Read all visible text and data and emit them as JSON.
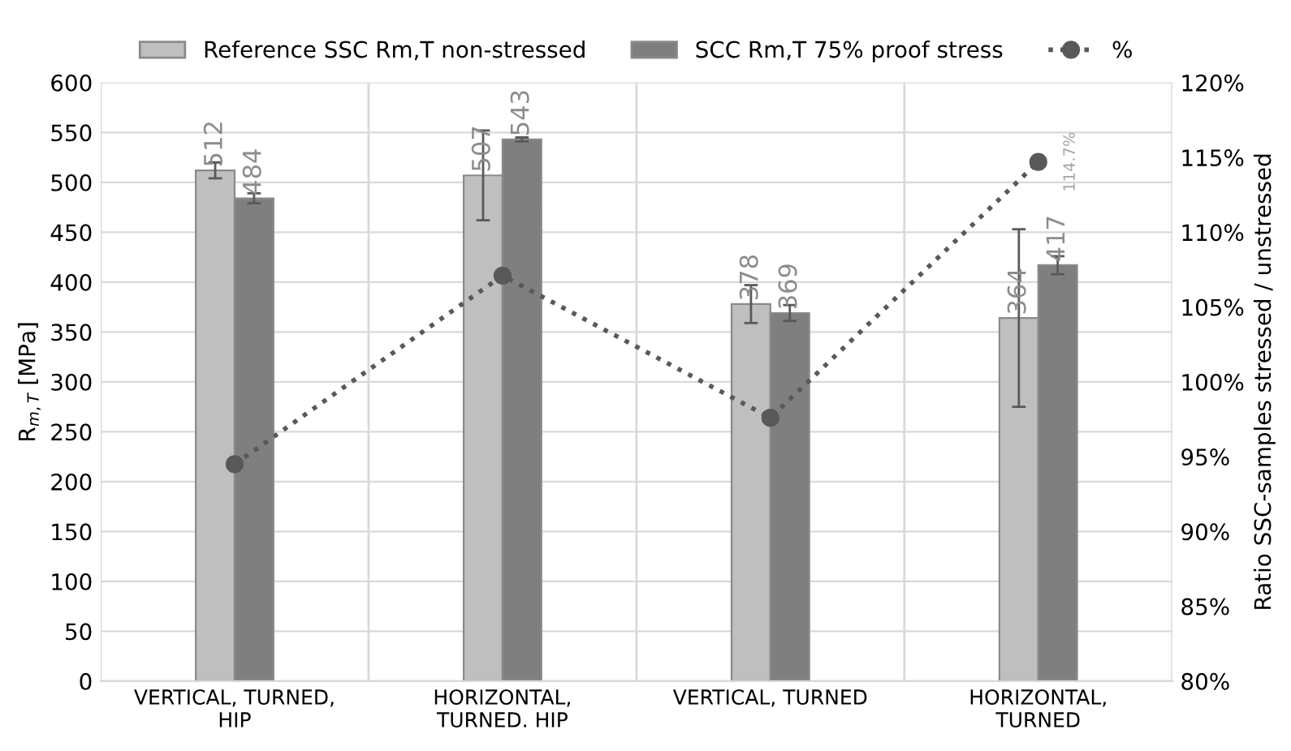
{
  "chart_data": {
    "type": "bar",
    "categories": [
      "VERTICAL, TURNED,\nHIP",
      "HORIZONTAL,\nTURNED. HIP",
      "VERTICAL, TURNED",
      "HORIZONTAL,\nTURNED"
    ],
    "series": [
      {
        "name": "Reference SSC Rm,T non-stressed",
        "color": "#bfbfbf",
        "values": [
          512,
          507,
          378,
          364
        ],
        "errors": [
          8,
          45,
          19,
          89
        ],
        "value_labels": [
          "512",
          "507",
          "378",
          "364"
        ]
      },
      {
        "name": "SCC Rm,T 75% proof stress",
        "color": "#7f7f7f",
        "values": [
          484,
          543,
          369,
          417
        ],
        "errors": [
          5,
          2,
          8,
          9
        ],
        "value_labels": [
          "484",
          "543",
          "369",
          "417"
        ]
      },
      {
        "name": "%",
        "type": "line",
        "axis": "y2",
        "color": "#595959",
        "marker": "circle",
        "line_style": "dotted",
        "values": [
          94.5,
          107.1,
          97.6,
          114.7
        ],
        "value_labels": [
          null,
          null,
          null,
          "114.7%"
        ]
      }
    ],
    "ylabel": "R$_{m,T}$ [MPa]",
    "y2label": "Ratio SSC-samples stressed / unstressed",
    "ylim": [
      0,
      600
    ],
    "yticks": [
      0,
      50,
      100,
      150,
      200,
      250,
      300,
      350,
      400,
      450,
      500,
      550,
      600
    ],
    "y2lim": [
      80,
      120
    ],
    "y2ticks": [
      {
        "value": 80,
        "label": "80%"
      },
      {
        "value": 85,
        "label": "85%"
      },
      {
        "value": 90,
        "label": "90%"
      },
      {
        "value": 95,
        "label": "95%"
      },
      {
        "value": 100,
        "label": "100%"
      },
      {
        "value": 105,
        "label": "105%"
      },
      {
        "value": 110,
        "label": "110%"
      },
      {
        "value": 115,
        "label": "115%"
      },
      {
        "value": 120,
        "label": "120%"
      }
    ],
    "grid": true,
    "legend": "top"
  }
}
